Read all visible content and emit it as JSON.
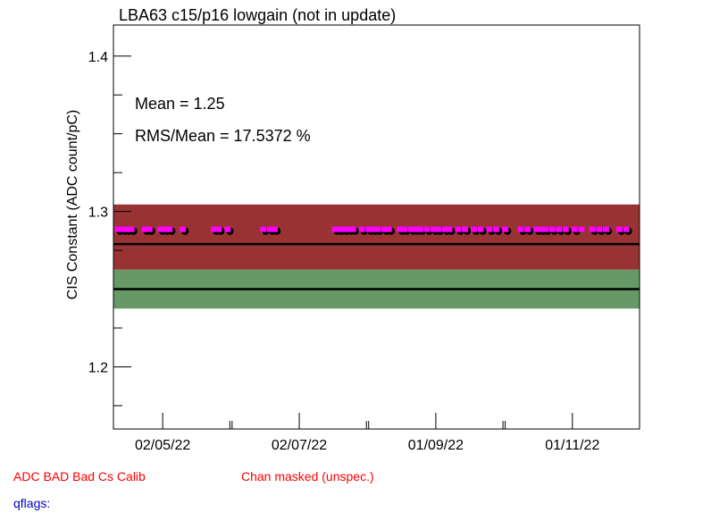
{
  "chart_data": {
    "type": "scatter",
    "title": "LBA63 c15/p16 lowgain (not in update)",
    "xlabel": "",
    "ylabel": "CIS Constant (ADC count/pC)",
    "ylim": [
      1.16,
      1.42
    ],
    "xlim": [
      "2022-04-10",
      "2022-12-01"
    ],
    "y_ticks": [
      1.2,
      1.3,
      1.4
    ],
    "y_tick_labels": [
      "1.2",
      "1.3",
      "1.4"
    ],
    "x_ticks": [
      "2022-05-02",
      "2022-07-02",
      "2022-09-01",
      "2022-11-01"
    ],
    "x_tick_labels": [
      "02/05/22",
      "02/07/22",
      "01/09/22",
      "01/11/22"
    ],
    "mean_label": "Mean = 1.25",
    "rms_label": "RMS/Mean = 17.5372 %",
    "bands": [
      {
        "name": "upper",
        "y_from": 1.2625,
        "y_to": 1.3045,
        "color": "#993333"
      },
      {
        "name": "lower",
        "y_from": 1.2375,
        "y_to": 1.2625,
        "color": "#669966"
      }
    ],
    "reference_lines": [
      1.25,
      1.279
    ],
    "series": [
      {
        "marker_color": "#000000",
        "y": 1.2885,
        "x": [
          "2022-04-13",
          "2022-04-15",
          "2022-04-17",
          "2022-04-19",
          "2022-04-25",
          "2022-04-27",
          "2022-05-02",
          "2022-05-04",
          "2022-05-06",
          "2022-05-12",
          "2022-05-26",
          "2022-05-28",
          "2022-06-01",
          "2022-06-17",
          "2022-06-20",
          "2022-06-22",
          "2022-07-19",
          "2022-07-21",
          "2022-07-23",
          "2022-07-25",
          "2022-07-27",
          "2022-07-31",
          "2022-08-03",
          "2022-08-05",
          "2022-08-07",
          "2022-08-10",
          "2022-08-12",
          "2022-08-17",
          "2022-08-19",
          "2022-08-22",
          "2022-08-24",
          "2022-08-26",
          "2022-08-29",
          "2022-09-01",
          "2022-09-03",
          "2022-09-06",
          "2022-09-08",
          "2022-09-12",
          "2022-09-15",
          "2022-09-19",
          "2022-09-22",
          "2022-09-26",
          "2022-09-29",
          "2022-10-03",
          "2022-10-10",
          "2022-10-13",
          "2022-10-17",
          "2022-10-19",
          "2022-10-21",
          "2022-10-24",
          "2022-10-27",
          "2022-10-30",
          "2022-11-03",
          "2022-11-11",
          "2022-11-14",
          "2022-11-17",
          "2022-11-23",
          "2022-11-26"
        ]
      },
      {
        "marker_color": "#ff00ff",
        "y": 1.2885,
        "x": [
          "2022-04-12",
          "2022-04-14",
          "2022-04-16",
          "2022-04-18",
          "2022-04-24",
          "2022-04-26",
          "2022-05-01",
          "2022-05-03",
          "2022-05-05",
          "2022-05-11",
          "2022-05-25",
          "2022-05-27",
          "2022-05-31",
          "2022-06-16",
          "2022-06-19",
          "2022-06-21",
          "2022-07-18",
          "2022-07-20",
          "2022-07-22",
          "2022-07-24",
          "2022-07-26",
          "2022-07-30",
          "2022-08-02",
          "2022-08-04",
          "2022-08-06",
          "2022-08-09",
          "2022-08-11",
          "2022-08-16",
          "2022-08-18",
          "2022-08-21",
          "2022-08-23",
          "2022-08-25",
          "2022-08-28",
          "2022-08-31",
          "2022-09-02",
          "2022-09-05",
          "2022-09-07",
          "2022-09-11",
          "2022-09-14",
          "2022-09-18",
          "2022-09-21",
          "2022-09-25",
          "2022-09-28",
          "2022-10-02",
          "2022-10-09",
          "2022-10-12",
          "2022-10-16",
          "2022-10-18",
          "2022-10-20",
          "2022-10-23",
          "2022-10-26",
          "2022-10-29",
          "2022-11-02",
          "2022-11-05",
          "2022-11-10",
          "2022-11-13",
          "2022-11-16",
          "2022-11-22",
          "2022-11-25"
        ]
      }
    ]
  },
  "footer": {
    "adc_bad": "ADC BAD  Bad Cs Calib",
    "chan_masked": "Chan masked (unspec.)",
    "qflags": "qflags:",
    "red": "#ff0000",
    "blue": "#0000cc"
  }
}
